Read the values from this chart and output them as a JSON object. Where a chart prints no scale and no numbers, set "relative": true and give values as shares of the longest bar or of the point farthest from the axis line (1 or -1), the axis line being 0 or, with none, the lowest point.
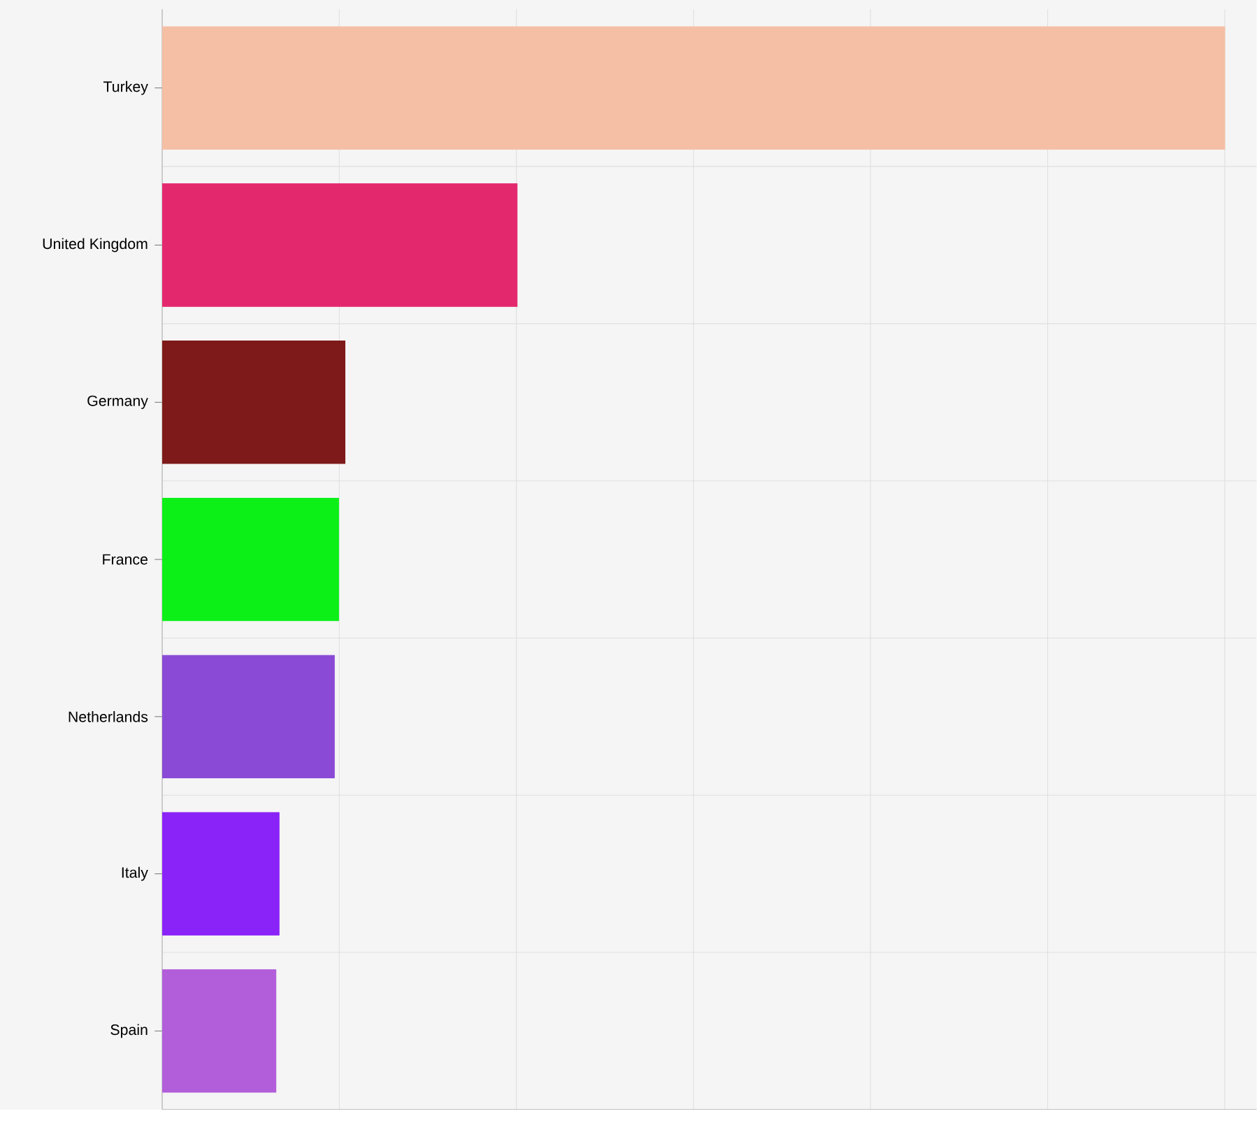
{
  "chart_data": {
    "type": "bar",
    "orientation": "horizontal",
    "relative": true,
    "grid": true,
    "categories": [
      "Turkey",
      "United Kingdom",
      "Germany",
      "France",
      "Netherlands",
      "Italy",
      "Spain"
    ],
    "values": [
      1,
      0.334,
      0.172,
      0.166,
      0.162,
      0.11,
      0.107
    ],
    "colors": [
      "#f5bfa5",
      "#e4286e",
      "#7f1a1a",
      "#0cf018",
      "#8a4ad6",
      "#8a23f7",
      "#b25edb"
    ]
  }
}
